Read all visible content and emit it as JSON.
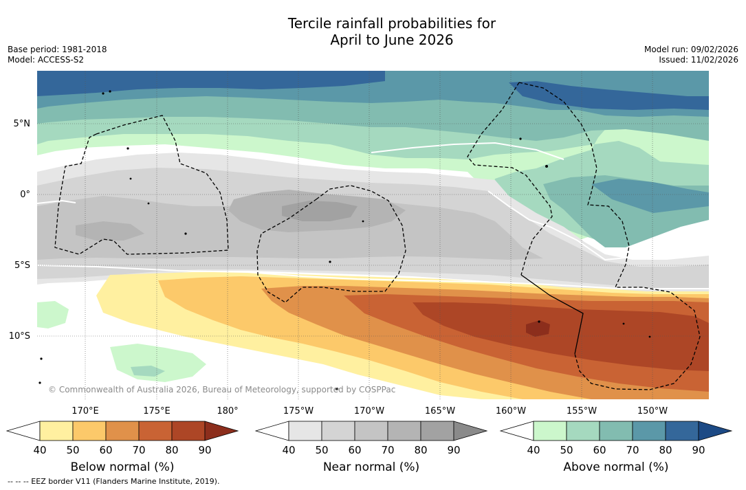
{
  "title": {
    "line1": "Tercile rainfall probabilities for",
    "line2": "April to June 2026"
  },
  "meta_left": {
    "base_period": "Base period: 1981-2018",
    "model": "Model: ACCESS-S2"
  },
  "meta_right": {
    "model_run": "Model run: 09/02/2026",
    "issued": "Issued: 11/02/2026"
  },
  "map": {
    "lat_labels": [
      "5°N",
      "0°",
      "5°S",
      "10°S"
    ],
    "lon_labels": [
      "170°E",
      "175°E",
      "180°",
      "175°W",
      "170°W",
      "165°W",
      "160°W",
      "155°W",
      "150°W"
    ],
    "copyright": "© Commonwealth of Australia 2026, Bureau of Meteorology, supported by COSPPac",
    "colors": {
      "below": [
        "#fff0a0",
        "#fcc96a",
        "#e0914a",
        "#c96334",
        "#ad4626",
        "#8c2e1c"
      ],
      "near": [
        "#e6e6e6",
        "#d4d4d4",
        "#c4c4c4",
        "#b4b4b4",
        "#a2a2a2",
        "#8a8a8a"
      ],
      "above": [
        "#ccf7cc",
        "#a5d9bf",
        "#82bcb0",
        "#5b98a8",
        "#34679a",
        "#1c4a85"
      ]
    }
  },
  "colorbars": [
    {
      "name": "below",
      "title": "Below normal (%)",
      "ticks": [
        "40",
        "50",
        "60",
        "70",
        "80",
        "90"
      ]
    },
    {
      "name": "near",
      "title": "Near normal (%)",
      "ticks": [
        "40",
        "50",
        "60",
        "70",
        "80",
        "90"
      ]
    },
    {
      "name": "above",
      "title": "Above normal (%)",
      "ticks": [
        "40",
        "50",
        "60",
        "70",
        "80",
        "90"
      ]
    }
  ],
  "footer": "--  --  -- EEZ border V11 (Flanders Marine Institute, 2019)."
}
